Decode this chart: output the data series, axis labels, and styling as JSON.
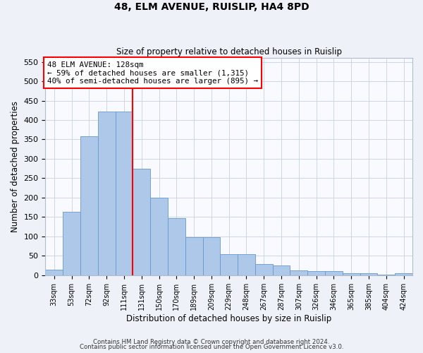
{
  "title1": "48, ELM AVENUE, RUISLIP, HA4 8PD",
  "title2": "Size of property relative to detached houses in Ruislip",
  "xlabel": "Distribution of detached houses by size in Ruislip",
  "ylabel": "Number of detached properties",
  "categories": [
    "33sqm",
    "53sqm",
    "72sqm",
    "92sqm",
    "111sqm",
    "131sqm",
    "150sqm",
    "170sqm",
    "189sqm",
    "209sqm",
    "229sqm",
    "248sqm",
    "267sqm",
    "287sqm",
    "307sqm",
    "326sqm",
    "346sqm",
    "365sqm",
    "385sqm",
    "404sqm",
    "424sqm"
  ],
  "values": [
    15,
    163,
    358,
    422,
    422,
    275,
    200,
    148,
    98,
    98,
    55,
    55,
    28,
    25,
    13,
    11,
    11,
    5,
    5,
    2,
    5
  ],
  "bar_color": "#adc8e8",
  "bar_edge_color": "#6699cc",
  "red_line_x": 4.5,
  "ylim": [
    0,
    560
  ],
  "yticks": [
    0,
    50,
    100,
    150,
    200,
    250,
    300,
    350,
    400,
    450,
    500,
    550
  ],
  "annotation_line1": "48 ELM AVENUE: 128sqm",
  "annotation_line2": "← 59% of detached houses are smaller (1,315)",
  "annotation_line3": "40% of semi-detached houses are larger (895) →",
  "footer1": "Contains HM Land Registry data © Crown copyright and database right 2024.",
  "footer2": "Contains public sector information licensed under the Open Government Licence v3.0.",
  "bg_color": "#eef2f8",
  "plot_bg_color": "#f8faff",
  "grid_color": "#c8d0e0"
}
